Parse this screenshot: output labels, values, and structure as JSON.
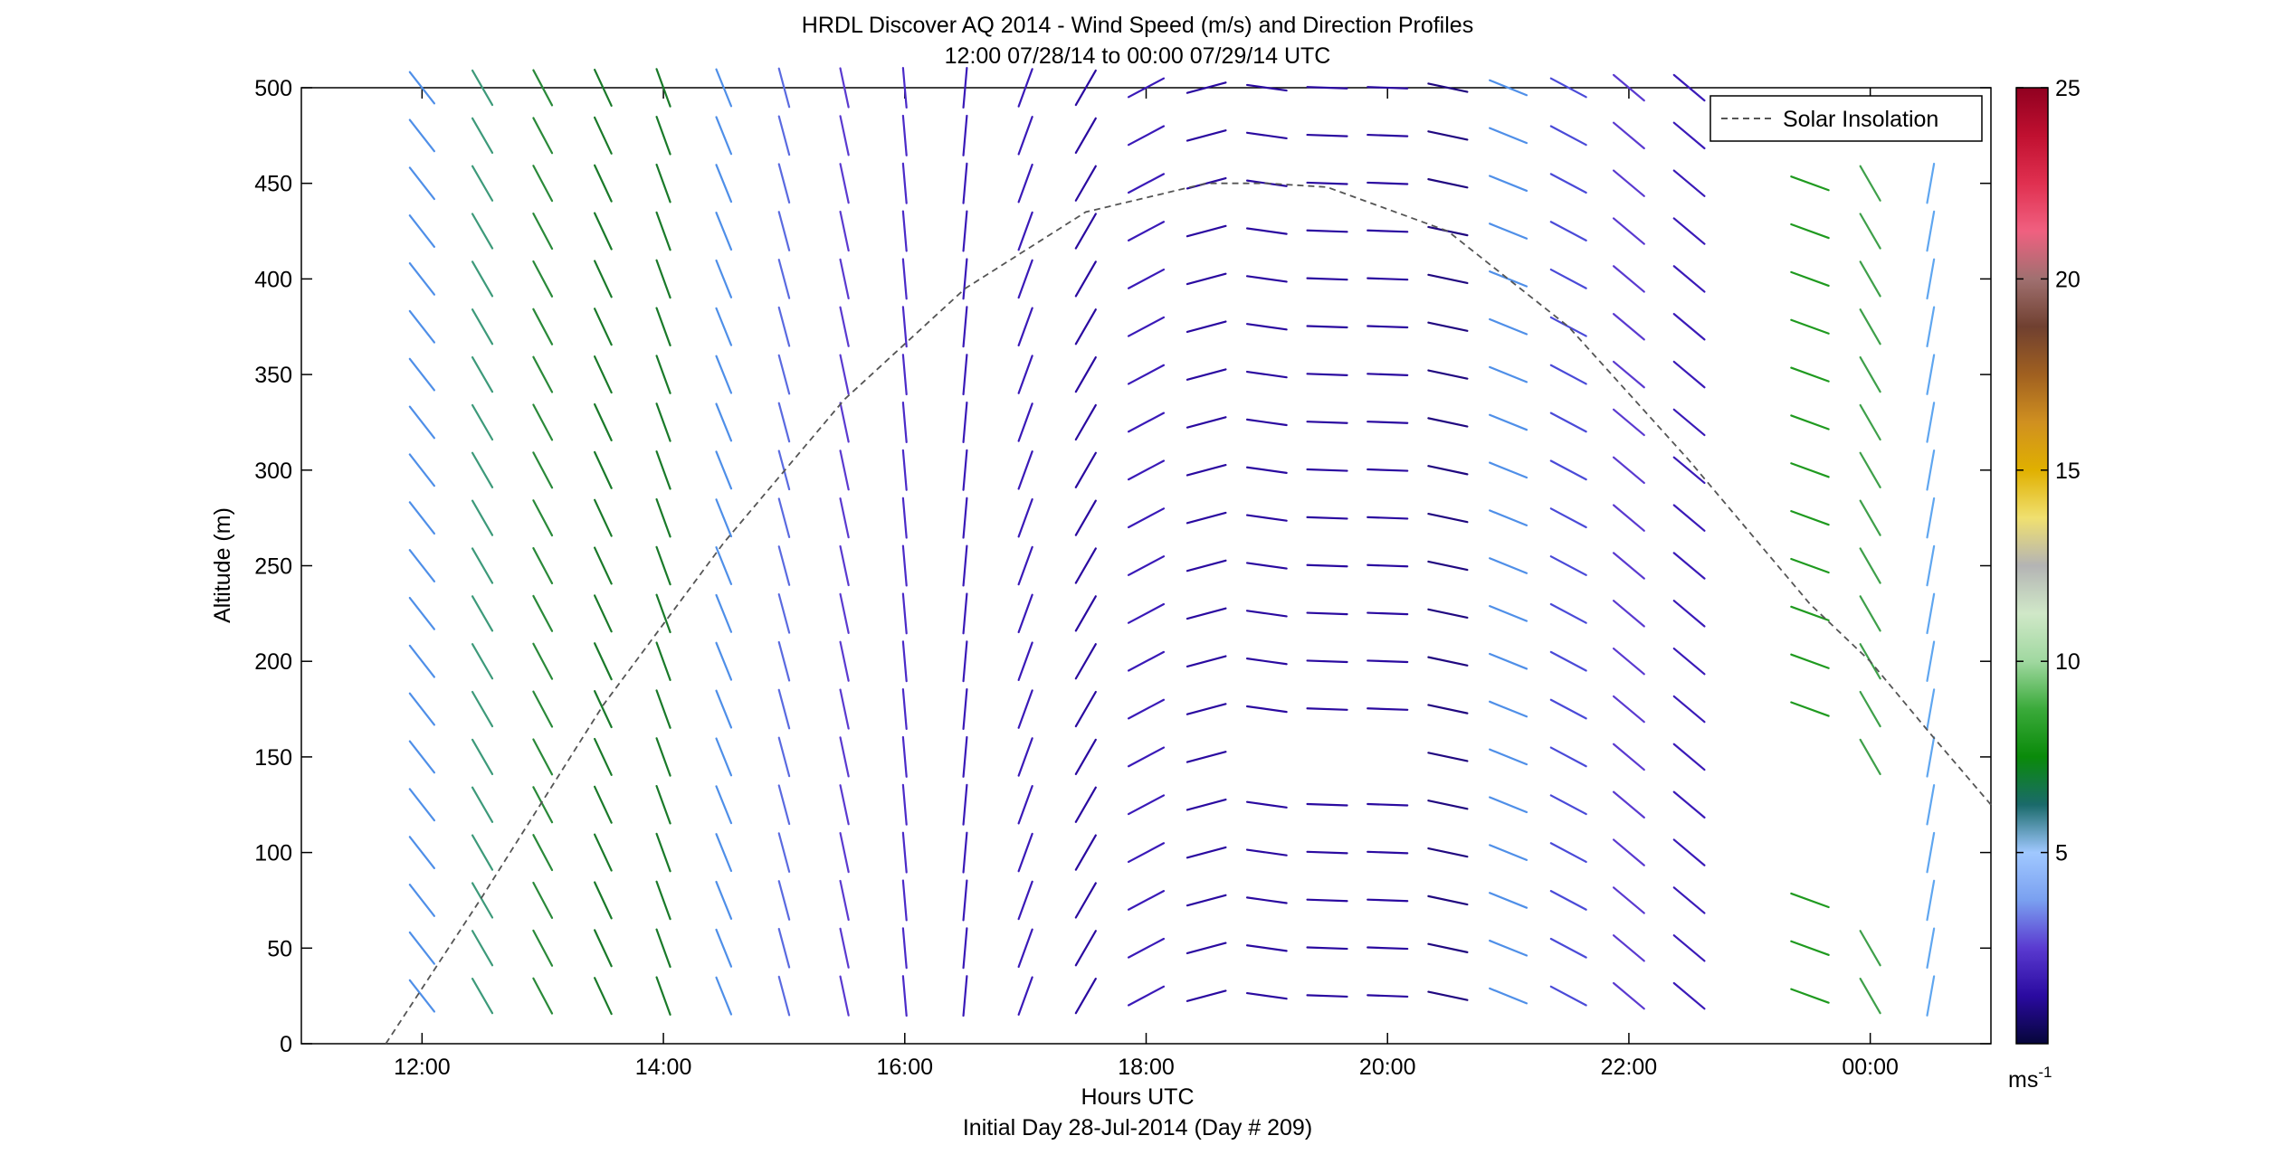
{
  "chart_data": {
    "type": "wind-barb",
    "title": "HRDL Discover AQ 2014 - Wind Speed (m/s) and Direction Profiles",
    "subtitle": "12:00 07/28/14 to 00:00 07/29/14  UTC",
    "xlabel": "Hours UTC",
    "xlabel2": "Initial Day 28-Jul-2014 (Day # 209)",
    "ylabel": "Altitude (m)",
    "xlim": [
      11.0,
      25.0
    ],
    "ylim": [
      0,
      500
    ],
    "xticks": [
      {
        "value": 12,
        "label": "12:00"
      },
      {
        "value": 14,
        "label": "14:00"
      },
      {
        "value": 16,
        "label": "16:00"
      },
      {
        "value": 18,
        "label": "18:00"
      },
      {
        "value": 20,
        "label": "20:00"
      },
      {
        "value": 22,
        "label": "22:00"
      },
      {
        "value": 24,
        "label": "00:00"
      }
    ],
    "yticks": [
      "0",
      "50",
      "100",
      "150",
      "200",
      "250",
      "300",
      "350",
      "400",
      "450",
      "500"
    ],
    "legend": {
      "label": "Solar Insolation",
      "position": "top-right"
    },
    "colorbar": {
      "min": 0,
      "max": 25,
      "ticks": [
        "5",
        "10",
        "15",
        "20",
        "25"
      ],
      "unit_label": "ms",
      "unit_superscript": "-1",
      "stops": [
        "#06063a",
        "#2a0aa0",
        "#5a3ad0",
        "#7aa0f0",
        "#a0c8ff",
        "#1a6a6a",
        "#0a8a0a",
        "#3aaa3a",
        "#a0d8a0",
        "#d0e8c8",
        "#b4b4b4",
        "#f0e070",
        "#e0b000",
        "#d09020",
        "#a06020",
        "#704030",
        "#a07070",
        "#f06080",
        "#e03050",
        "#c01030",
        "#900020"
      ]
    },
    "solar_insolation": {
      "x": [
        11.7,
        12.5,
        13.5,
        14.5,
        15.5,
        16.5,
        17.5,
        18.5,
        19.0,
        19.5,
        20.5,
        21.5,
        22.5,
        23.5,
        24.0,
        24.5,
        25.0
      ],
      "y": [
        0,
        77,
        177,
        262,
        337,
        395,
        435,
        450,
        450,
        448,
        425,
        375,
        305,
        230,
        200,
        162,
        125
      ]
    },
    "wind_barbs": [
      {
        "t": 12.0,
        "color": "#4f8fe8",
        "angle": -52,
        "alts": [
          25,
          50,
          75,
          100,
          125,
          150,
          175,
          200,
          225,
          250,
          275,
          300,
          325,
          350,
          375,
          400,
          425,
          450,
          475,
          500
        ]
      },
      {
        "t": 12.5,
        "color": "#3d9a7a",
        "angle": -60,
        "alts": [
          25,
          50,
          75,
          100,
          125,
          150,
          175,
          200,
          225,
          250,
          275,
          300,
          325,
          350,
          375,
          400,
          425,
          450,
          475,
          500
        ]
      },
      {
        "t": 13.0,
        "color": "#2a8a3a",
        "angle": -62,
        "alts": [
          25,
          50,
          75,
          100,
          125,
          150,
          175,
          200,
          225,
          250,
          275,
          300,
          325,
          350,
          375,
          400,
          425,
          450,
          475,
          500
        ]
      },
      {
        "t": 13.5,
        "color": "#1a7a2a",
        "angle": -65,
        "alts": [
          25,
          50,
          75,
          100,
          125,
          150,
          175,
          200,
          225,
          250,
          275,
          300,
          325,
          350,
          375,
          400,
          425,
          450,
          475,
          500
        ]
      },
      {
        "t": 14.0,
        "color": "#1a7a2a",
        "angle": -70,
        "alts": [
          25,
          50,
          75,
          100,
          125,
          150,
          175,
          200,
          225,
          250,
          275,
          300,
          325,
          350,
          375,
          400,
          425,
          450,
          475,
          500
        ]
      },
      {
        "t": 14.5,
        "color": "#4f8fe8",
        "angle": -68,
        "alts": [
          25,
          50,
          75,
          100,
          125,
          150,
          175,
          200,
          225,
          250,
          275,
          300,
          325,
          350,
          375,
          400,
          425,
          450,
          475,
          500
        ]
      },
      {
        "t": 15.0,
        "color": "#5a6ae0",
        "angle": -75,
        "alts": [
          25,
          50,
          75,
          100,
          125,
          150,
          175,
          200,
          225,
          250,
          275,
          300,
          325,
          350,
          375,
          400,
          425,
          450,
          475,
          500
        ]
      },
      {
        "t": 15.5,
        "color": "#5a3ad0",
        "angle": -78,
        "alts": [
          25,
          50,
          75,
          100,
          125,
          150,
          175,
          200,
          225,
          250,
          275,
          300,
          325,
          350,
          375,
          400,
          425,
          450,
          475,
          500
        ]
      },
      {
        "t": 16.0,
        "color": "#4a2ac8",
        "angle": -85,
        "alts": [
          25,
          50,
          75,
          100,
          125,
          150,
          175,
          200,
          225,
          250,
          275,
          300,
          325,
          350,
          375,
          400,
          425,
          450,
          475,
          500
        ]
      },
      {
        "t": 16.5,
        "color": "#3a1ab8",
        "angle": -95,
        "alts": [
          25,
          50,
          75,
          100,
          125,
          150,
          175,
          200,
          225,
          250,
          275,
          300,
          325,
          350,
          375,
          400,
          425,
          450,
          475,
          500
        ]
      },
      {
        "t": 17.0,
        "color": "#3a1ab8",
        "angle": -110,
        "alts": [
          25,
          50,
          75,
          100,
          125,
          150,
          175,
          200,
          225,
          250,
          275,
          300,
          325,
          350,
          375,
          400,
          425,
          450,
          475,
          500
        ]
      },
      {
        "t": 17.5,
        "color": "#2a0aa0",
        "angle": -120,
        "alts": [
          25,
          50,
          75,
          100,
          125,
          150,
          175,
          200,
          225,
          250,
          275,
          300,
          325,
          350,
          375,
          400,
          425,
          450,
          475,
          500
        ]
      },
      {
        "t": 18.0,
        "color": "#3a1ab8",
        "angle": -152,
        "alts": [
          25,
          50,
          75,
          100,
          125,
          150,
          175,
          200,
          225,
          250,
          275,
          300,
          325,
          350,
          375,
          400,
          425,
          450,
          475,
          500
        ]
      },
      {
        "t": 18.5,
        "color": "#2a0aa0",
        "angle": -165,
        "alts": [
          25,
          50,
          75,
          100,
          125,
          150,
          175,
          200,
          225,
          250,
          275,
          300,
          325,
          350,
          375,
          400,
          425,
          450,
          475,
          500
        ]
      },
      {
        "t": 19.0,
        "color": "#2a0aa0",
        "angle": 172,
        "alts": [
          25,
          50,
          75,
          100,
          125,
          175,
          200,
          225,
          250,
          275,
          300,
          325,
          350,
          375,
          400,
          425,
          450,
          475,
          500
        ]
      },
      {
        "t": 19.5,
        "color": "#2a0aa0",
        "angle": 178,
        "alts": [
          25,
          50,
          75,
          100,
          125,
          175,
          200,
          225,
          250,
          275,
          300,
          325,
          350,
          375,
          400,
          425,
          450,
          475,
          500
        ]
      },
      {
        "t": 20.0,
        "color": "#2a0aa0",
        "angle": 178,
        "alts": [
          25,
          50,
          75,
          100,
          125,
          175,
          200,
          225,
          250,
          275,
          300,
          325,
          350,
          375,
          400,
          425,
          450,
          475,
          500
        ]
      },
      {
        "t": 20.5,
        "color": "#200880",
        "angle": 168,
        "alts": [
          25,
          50,
          75,
          100,
          125,
          150,
          175,
          200,
          225,
          250,
          275,
          300,
          325,
          350,
          375,
          400,
          425,
          450,
          475,
          500
        ]
      },
      {
        "t": 21.0,
        "color": "#4f8fe8",
        "angle": 158,
        "alts": [
          25,
          50,
          75,
          100,
          125,
          150,
          175,
          200,
          225,
          250,
          275,
          300,
          325,
          350,
          375,
          400,
          425,
          450,
          475,
          500
        ]
      },
      {
        "t": 21.5,
        "color": "#4a4ad8",
        "angle": 152,
        "alts": [
          25,
          50,
          75,
          100,
          125,
          150,
          175,
          200,
          225,
          250,
          275,
          300,
          325,
          350,
          375,
          400,
          425,
          450,
          475,
          500
        ]
      },
      {
        "t": 22.0,
        "color": "#5a3ad0",
        "angle": 140,
        "alts": [
          25,
          50,
          75,
          100,
          125,
          150,
          175,
          200,
          225,
          250,
          275,
          300,
          325,
          350,
          375,
          400,
          425,
          450,
          475,
          500
        ]
      },
      {
        "t": 22.5,
        "color": "#3a1ab8",
        "angle": 140,
        "alts": [
          25,
          50,
          75,
          100,
          125,
          150,
          175,
          200,
          225,
          250,
          275,
          300,
          325,
          350,
          375,
          400,
          425,
          450,
          475,
          500
        ]
      },
      {
        "t": 23.5,
        "color": "#1f9a1f",
        "angle": 160,
        "alts": [
          25,
          50,
          75,
          175,
          200,
          225,
          250,
          275,
          300,
          325,
          350,
          375,
          400,
          425,
          450
        ]
      },
      {
        "t": 24.0,
        "color": "#3ea04a",
        "angle": 120,
        "alts": [
          25,
          50,
          150,
          175,
          200,
          225,
          250,
          275,
          300,
          325,
          350,
          375,
          400,
          425,
          450
        ]
      },
      {
        "t": 24.5,
        "color": "#5fa6f0",
        "angle": -100,
        "alts": [
          25,
          50,
          75,
          100,
          125,
          150,
          175,
          200,
          225,
          250,
          275,
          300,
          325,
          350,
          375,
          400,
          425,
          450
        ]
      }
    ]
  }
}
